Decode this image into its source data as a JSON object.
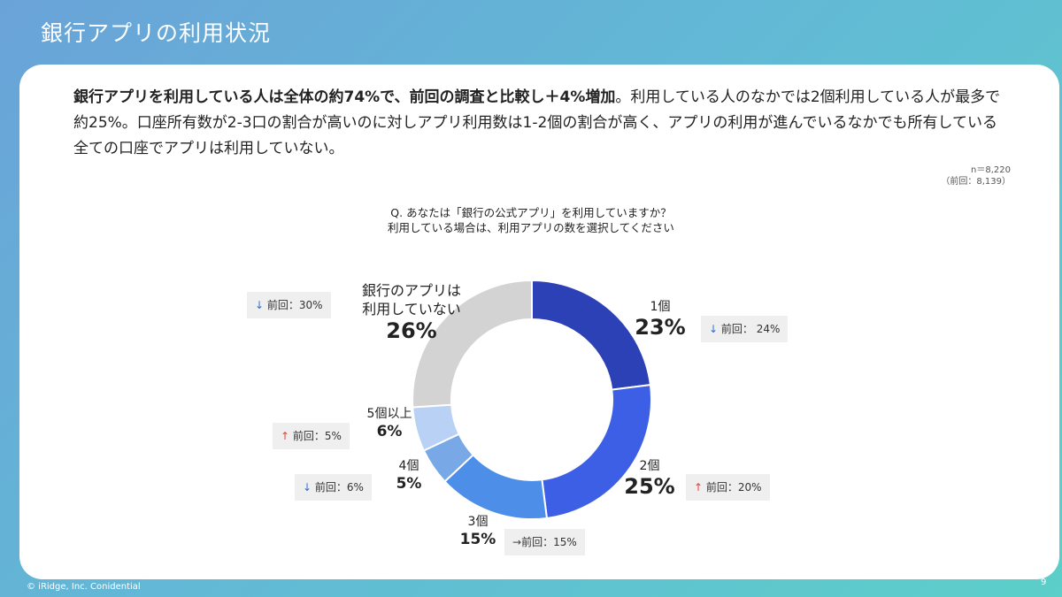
{
  "title": "銀行アプリの利用状況",
  "summary": {
    "bold": "銀行アプリを利用している人は全体の約74%で、前回の調査と比較し＋4%増加",
    "rest": "。利用している人のなかでは2個利用している人が最多で約25%。口座所有数が2-3口の割合が高いのに対しアプリ利用数は1-2個の割合が高く、アプリの利用が進んでいるなかでも所有している全ての口座でアプリは利用していない。"
  },
  "sample": {
    "n": "n＝8,220",
    "prev": "（前回：8,139）"
  },
  "question": {
    "line1": "Q. あなたは「銀行の公式アプリ」を利用していますか？",
    "line2": "利用している場合は、利用アプリの数を選択してください"
  },
  "chart_data": {
    "type": "pie",
    "style": "donut",
    "title": "Q. あなたは「銀行の公式アプリ」を利用していますか？ 利用している場合は、利用アプリの数を選択してください",
    "slices": [
      {
        "label": "1個",
        "value": 23,
        "display": "23%",
        "color": "#2b41b5",
        "prev": "前回： 24%",
        "trend": "down",
        "trend_symbol": "↓"
      },
      {
        "label": "2個",
        "value": 25,
        "display": "25%",
        "color": "#3d5fe6",
        "prev": "前回：20%",
        "trend": "up",
        "trend_symbol": "↑"
      },
      {
        "label": "3個",
        "value": 15,
        "display": "15%",
        "color": "#4d8ee8",
        "prev": "前回：15%",
        "trend": "flat",
        "trend_symbol": "→"
      },
      {
        "label": "4個",
        "value": 5,
        "display": "5%",
        "color": "#78a9e6",
        "prev": "前回：6%",
        "trend": "down",
        "trend_symbol": "↓"
      },
      {
        "label": "5個以上",
        "value": 6,
        "display": "6%",
        "color": "#b8d1f4",
        "prev": "前回：5%",
        "trend": "up",
        "trend_symbol": "↑"
      },
      {
        "label": "銀行のアプリは利用していない",
        "label_line1": "銀行のアプリは",
        "label_line2": "利用していない",
        "value": 26,
        "display": "26%",
        "color": "#d3d3d3",
        "prev": "前回：30%",
        "trend": "down",
        "trend_symbol": "↓"
      }
    ]
  },
  "footer": "© iRidge, Inc. Conidential",
  "page_number": "9"
}
